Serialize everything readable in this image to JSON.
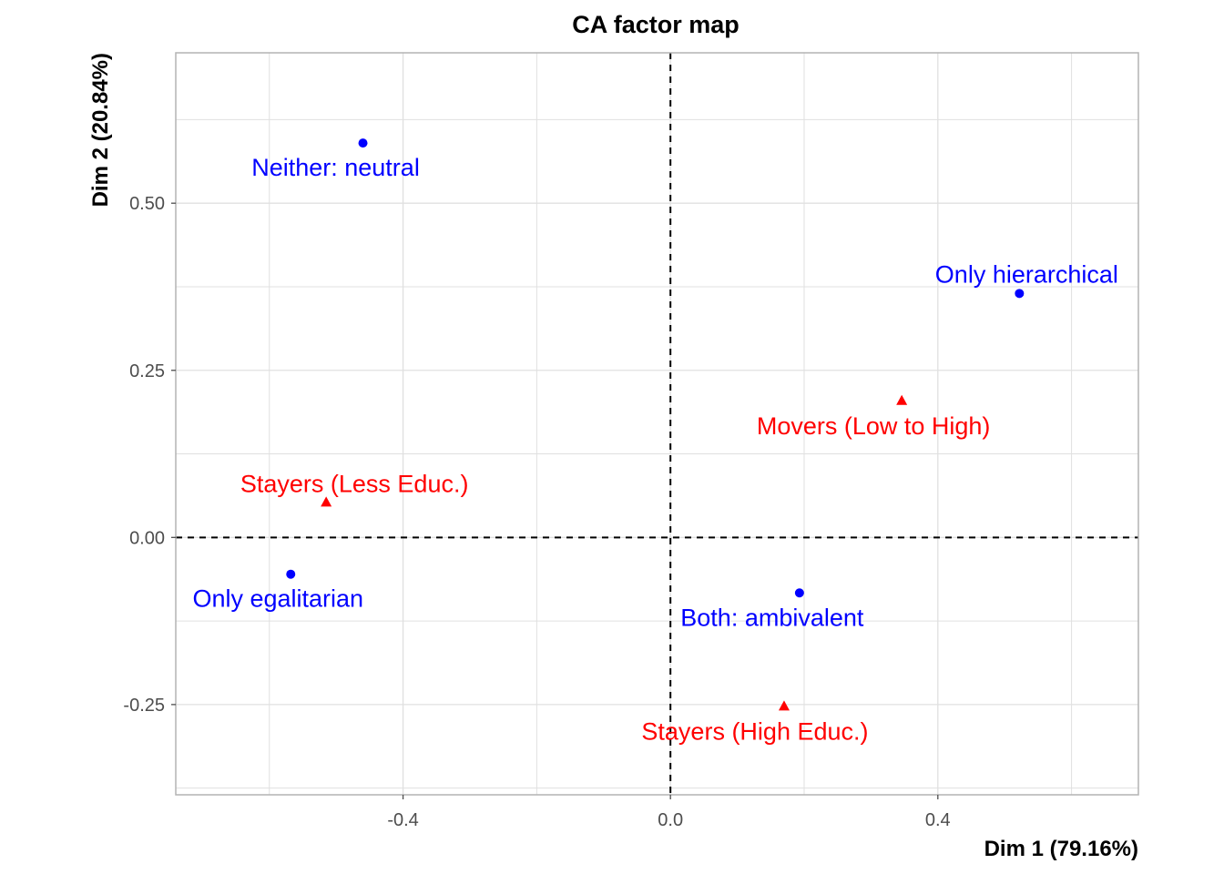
{
  "chart_data": {
    "type": "scatter",
    "title": "CA factor map",
    "xlabel": "Dim 1 (79.16%)",
    "ylabel": "Dim 2 (20.84%)",
    "xlim": [
      -0.74,
      0.7
    ],
    "ylim": [
      -0.385,
      0.725
    ],
    "xticks": [
      -0.4,
      0.0,
      0.4
    ],
    "xtick_labels": [
      "-0.4",
      "0.0",
      "0.4"
    ],
    "yticks": [
      -0.25,
      0.0,
      0.25,
      0.5
    ],
    "ytick_labels": [
      "-0.25",
      "0.00",
      "0.25",
      "0.50"
    ],
    "x_minor_gridlines": [
      -0.6,
      -0.2,
      0.2,
      0.6
    ],
    "y_minor_gridlines": [
      -0.375,
      -0.125,
      0.125,
      0.375,
      0.625
    ],
    "grid": true,
    "reference_lines": {
      "x": 0,
      "y": 0,
      "style": "dashed"
    },
    "colors": {
      "columns": "#0000ff",
      "rows": "#ff0000",
      "grid": "#e0e0e0",
      "frame": "#b3b3b3"
    },
    "series": [
      {
        "marker": "circle",
        "color": "#0000ff",
        "points": [
          {
            "label": "Neither: neutral",
            "x": -0.46,
            "y": 0.59
          },
          {
            "label": "Only hierarchical",
            "x": 0.522,
            "y": 0.365
          },
          {
            "label": "Only egalitarian",
            "x": -0.568,
            "y": -0.055
          },
          {
            "label": "Both: ambivalent",
            "x": 0.193,
            "y": -0.083
          }
        ]
      },
      {
        "marker": "triangle",
        "color": "#ff0000",
        "points": [
          {
            "label": "Movers (Low to High)",
            "x": 0.346,
            "y": 0.205
          },
          {
            "label": "Stayers (Less Educ.)",
            "x": -0.515,
            "y": 0.053
          },
          {
            "label": "Stayers (High Educ.)",
            "x": 0.17,
            "y": -0.252
          }
        ]
      }
    ]
  }
}
